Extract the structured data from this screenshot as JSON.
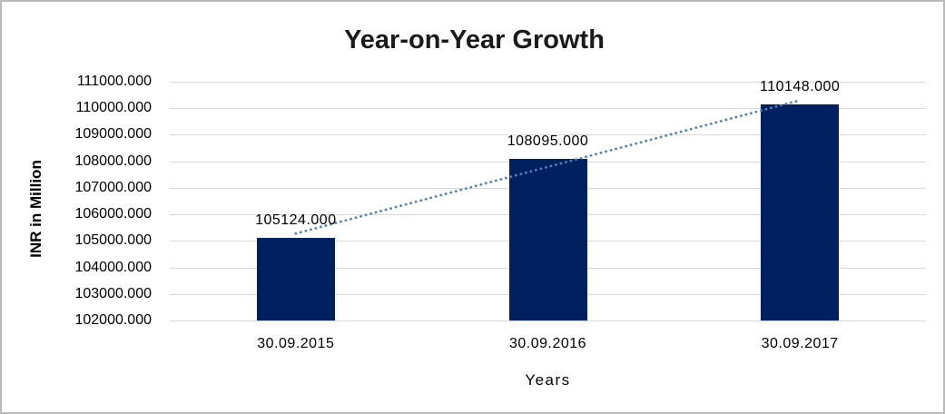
{
  "frame": {
    "background": "#ffffff",
    "border_color": "#b9b9b9"
  },
  "chart_data": {
    "type": "bar",
    "title": "Year-on-Year Growth",
    "categories": [
      "30.09.2015",
      "30.09.2016",
      "30.09.2017"
    ],
    "values": [
      105124,
      108095,
      110148
    ],
    "data_labels": [
      "105124.000",
      "108095.000",
      "110148.000"
    ],
    "xlabel": "Years",
    "ylabel": "INR in Million",
    "ylim": [
      102000,
      111000
    ],
    "ytick_step": 1000,
    "ytick_labels": [
      "102000.000",
      "103000.000",
      "104000.000",
      "105000.000",
      "106000.000",
      "107000.000",
      "108000.000",
      "109000.000",
      "110000.000",
      "111000.000"
    ],
    "grid": true,
    "legend": "none",
    "trendline": {
      "type": "linear",
      "style": "dotted"
    },
    "colors": {
      "bar": "#002060",
      "trendline": "#4e81bd",
      "gridline": "#d9d9d9",
      "text": "#000000",
      "title_text": "#1a1a1a"
    }
  }
}
